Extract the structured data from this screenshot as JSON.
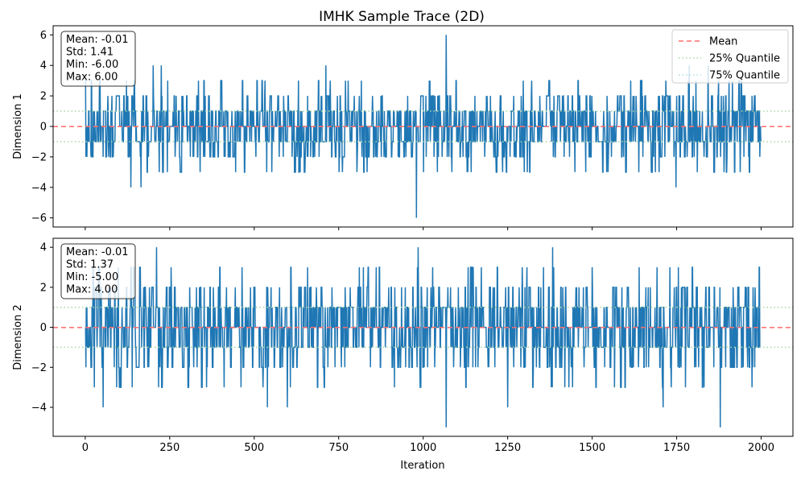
{
  "chart_data": {
    "type": "line",
    "title": "IMHK Sample Trace (2D)",
    "xlabel": "Iteration",
    "x_range": [
      0,
      1999
    ],
    "xlim": [
      -95,
      2094
    ],
    "x_ticks": [
      0,
      250,
      500,
      750,
      1000,
      1250,
      1500,
      1750,
      2000
    ],
    "colors": {
      "trace": "#1f77b4",
      "mean": "#ff6b6b",
      "q25": "#a8d5a2",
      "q75": "#aed8e6"
    },
    "legend": {
      "placement": "upper right",
      "entries": [
        "Mean",
        "25% Quantile",
        "75% Quantile"
      ]
    },
    "panels": [
      {
        "ylabel": "Dimension 1",
        "ylim": [
          -6.6,
          6.6
        ],
        "y_ticks": [
          -6,
          -4,
          -2,
          0,
          2,
          4,
          6
        ],
        "mean": -0.01,
        "q25": -1,
        "q75": 1,
        "stats": [
          "Mean: -0.01",
          "Std: 1.41",
          "Min: -6.00",
          "Max: 6.00"
        ],
        "extremes": [
          {
            "x": 980,
            "y": -6
          },
          {
            "x": 1068,
            "y": 6
          },
          {
            "x": 201,
            "y": 4
          },
          {
            "x": 225,
            "y": 4
          },
          {
            "x": 712,
            "y": 4
          },
          {
            "x": 1787,
            "y": 4
          },
          {
            "x": 1843,
            "y": 4
          },
          {
            "x": 135,
            "y": -4
          },
          {
            "x": 165,
            "y": -4
          },
          {
            "x": 1748,
            "y": -4
          }
        ]
      },
      {
        "ylabel": "Dimension 2",
        "ylim": [
          -5.45,
          4.45
        ],
        "y_ticks": [
          -4,
          -2,
          0,
          2,
          4
        ],
        "mean": -0.01,
        "q25": -1,
        "q75": 1,
        "stats": [
          "Mean: -0.01",
          "Std: 1.37",
          "Min: -5.00",
          "Max: 4.00"
        ],
        "extremes": [
          {
            "x": 1068,
            "y": -5
          },
          {
            "x": 1879,
            "y": -5
          },
          {
            "x": 211,
            "y": 4
          },
          {
            "x": 985,
            "y": 4
          },
          {
            "x": 1383,
            "y": 4
          },
          {
            "x": 53,
            "y": -4
          },
          {
            "x": 539,
            "y": -4
          },
          {
            "x": 598,
            "y": -4
          },
          {
            "x": 1250,
            "y": -4
          },
          {
            "x": 1710,
            "y": -4
          }
        ]
      }
    ]
  }
}
